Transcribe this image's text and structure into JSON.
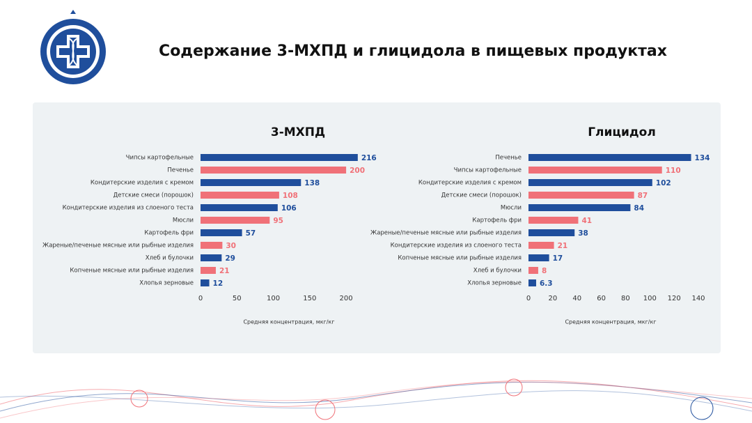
{
  "title": "Содержание 3-МХПД и глицидола в пищевых продуктах",
  "chart_data": [
    {
      "type": "hbar",
      "title": "3-МХПД",
      "xlabel": "Средняя концентрация, мкг/кг",
      "categories": [
        "Чипсы картофельные",
        "Печенье",
        "Кондитерские изделия с кремом",
        "Детские смеси (порошок)",
        "Кондитерские изделия из слоеного теста",
        "Мюсли",
        "Картофель фри",
        "Жареные/печеные мясные или рыбные изделия",
        "Хлеб и булочки",
        "Копченые мясные или рыбные изделия",
        "Хлопья зерновые"
      ],
      "values": [
        216,
        200,
        138,
        108,
        106,
        95,
        57,
        30,
        29,
        21,
        12
      ],
      "colors": [
        "#1f4e9c",
        "#f07178",
        "#1f4e9c",
        "#f07178",
        "#1f4e9c",
        "#f07178",
        "#1f4e9c",
        "#f07178",
        "#1f4e9c",
        "#f07178",
        "#1f4e9c"
      ],
      "xlim": [
        0,
        220
      ],
      "xticks": [
        0,
        50,
        100,
        150,
        200
      ]
    },
    {
      "type": "hbar",
      "title": "Глицидол",
      "xlabel": "Средняя концентрация, мкг/кг",
      "categories": [
        "Печенье",
        "Чипсы картофельные",
        "Кондитерские изделия с кремом",
        "Детские смеси (порошок)",
        "Мюсли",
        "Картофель фри",
        "Жареные/печеные мясные или рыбные изделия",
        "Кондитерские изделия из слоеного теста",
        "Копченые мясные или рыбные изделия",
        "Хлеб и булочки",
        "Хлопья зерновые"
      ],
      "values": [
        134,
        110,
        102,
        87,
        84,
        41,
        38,
        21,
        17,
        8,
        6.3
      ],
      "colors": [
        "#1f4e9c",
        "#f07178",
        "#1f4e9c",
        "#f07178",
        "#1f4e9c",
        "#f07178",
        "#1f4e9c",
        "#f07178",
        "#1f4e9c",
        "#f07178",
        "#1f4e9c"
      ],
      "xlim": [
        0,
        140
      ],
      "xticks": [
        0,
        20,
        40,
        60,
        80,
        100,
        120,
        140
      ]
    }
  ]
}
